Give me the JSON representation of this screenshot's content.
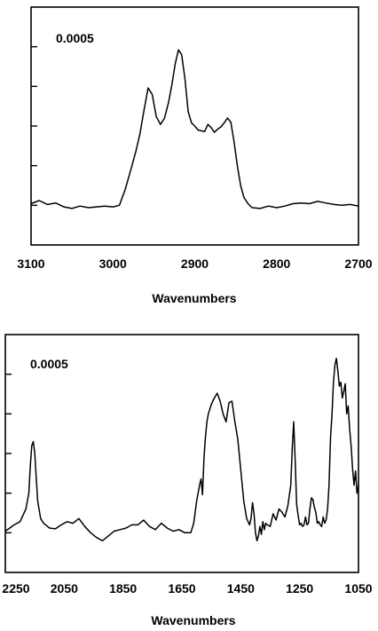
{
  "chart_data": [
    {
      "type": "line",
      "title": "",
      "xlabel": "Wavenumbers",
      "ylabel": "",
      "annotation": "0.0005",
      "xlim": [
        3100,
        2700
      ],
      "x_reversed": true,
      "ylim": [
        -0.0005,
        0.0025
      ],
      "x_ticks": [
        "3100",
        "3000",
        "2900",
        "2800",
        "2700"
      ],
      "y_tick_values": [
        0,
        0.0005,
        0.001,
        0.0015,
        0.002
      ],
      "grid": false,
      "series": [
        {
          "x": [
            3100,
            3090,
            3080,
            3070,
            3060,
            3050,
            3040,
            3030,
            3020,
            3010,
            3000,
            2992,
            2985,
            2978,
            2972,
            2967,
            2962,
            2957,
            2952,
            2947,
            2942,
            2937,
            2932,
            2928,
            2924,
            2920,
            2916,
            2912,
            2908,
            2904,
            2900,
            2896,
            2892,
            2888,
            2884,
            2880,
            2876,
            2872,
            2868,
            2864,
            2860,
            2856,
            2852,
            2848,
            2844,
            2840,
            2835,
            2830,
            2820,
            2810,
            2800,
            2790,
            2780,
            2770,
            2760,
            2750,
            2740,
            2730,
            2720,
            2710,
            2700
          ],
          "values": [
            2e-05,
            6e-05,
            1e-05,
            3e-05,
            -2e-05,
            -4e-05,
            -1e-05,
            -3e-05,
            -2e-05,
            -1e-05,
            -2e-05,
            0.0,
            0.0002,
            0.00045,
            0.00068,
            0.0009,
            0.0012,
            0.00148,
            0.0014,
            0.00112,
            0.00102,
            0.0011,
            0.0013,
            0.00152,
            0.00178,
            0.00196,
            0.0019,
            0.0016,
            0.00118,
            0.00104,
            0.001,
            0.00095,
            0.00094,
            0.00093,
            0.00102,
            0.00098,
            0.00092,
            0.00096,
            0.00099,
            0.00104,
            0.0011,
            0.00105,
            0.0008,
            0.0005,
            0.00025,
            0.0001,
            2e-05,
            -3e-05,
            -4e-05,
            -1e-05,
            -3e-05,
            -1e-05,
            2e-05,
            3e-05,
            2e-05,
            5e-05,
            3e-05,
            1e-05,
            0.0,
            1e-05,
            -1e-05
          ]
        }
      ]
    },
    {
      "type": "line",
      "title": "",
      "xlabel": "Wavenumbers",
      "ylabel": "",
      "annotation": "0.0005",
      "xlim": [
        2250,
        1050
      ],
      "x_reversed": true,
      "ylim": [
        -0.0005,
        0.0025
      ],
      "x_ticks": [
        "2250",
        "2050",
        "1850",
        "1650",
        "1450",
        "1250",
        "1050"
      ],
      "y_tick_values": [
        0,
        0.0005,
        0.001,
        0.0015,
        0.002
      ],
      "grid": false,
      "series": [
        {
          "x": [
            2250,
            2220,
            2200,
            2180,
            2170,
            2165,
            2160,
            2155,
            2150,
            2145,
            2140,
            2130,
            2120,
            2100,
            2080,
            2060,
            2040,
            2020,
            2000,
            1980,
            1960,
            1940,
            1920,
            1900,
            1880,
            1860,
            1840,
            1820,
            1800,
            1780,
            1760,
            1740,
            1720,
            1700,
            1680,
            1660,
            1640,
            1620,
            1610,
            1600,
            1590,
            1585,
            1580,
            1575,
            1570,
            1565,
            1560,
            1550,
            1540,
            1530,
            1520,
            1510,
            1500,
            1490,
            1480,
            1470,
            1460,
            1450,
            1440,
            1430,
            1420,
            1415,
            1410,
            1405,
            1400,
            1395,
            1390,
            1385,
            1380,
            1375,
            1370,
            1365,
            1360,
            1350,
            1340,
            1330,
            1320,
            1310,
            1300,
            1290,
            1280,
            1275,
            1270,
            1265,
            1260,
            1255,
            1250,
            1245,
            1240,
            1235,
            1230,
            1225,
            1220,
            1215,
            1210,
            1205,
            1200,
            1195,
            1190,
            1185,
            1180,
            1175,
            1170,
            1165,
            1160,
            1155,
            1150,
            1145,
            1140,
            1135,
            1130,
            1125,
            1120,
            1115,
            1110,
            1105,
            1100,
            1095,
            1090,
            1085,
            1080,
            1075,
            1070,
            1065,
            1060,
            1055,
            1050
          ],
          "values": [
            2e-05,
            0.0001,
            0.00014,
            0.0003,
            0.0005,
            0.00085,
            0.0011,
            0.00115,
            0.001,
            0.0007,
            0.0004,
            0.00018,
            0.00012,
            6e-05,
            5e-05,
            0.0001,
            0.00014,
            0.00012,
            0.00018,
            8e-05,
            0.0,
            -6e-05,
            -0.0001,
            -4e-05,
            2e-05,
            4e-05,
            6e-05,
            0.0001,
            0.0001,
            0.00016,
            8e-05,
            4e-05,
            0.00012,
            6e-05,
            2e-05,
            4e-05,
            0.0,
            0.0,
            0.00012,
            0.0004,
            0.0006,
            0.00068,
            0.00048,
            0.00095,
            0.0012,
            0.0014,
            0.0015,
            0.00162,
            0.0017,
            0.00176,
            0.00166,
            0.0015,
            0.0014,
            0.00164,
            0.00166,
            0.0014,
            0.00118,
            0.0008,
            0.0004,
            0.00018,
            0.0001,
            0.00018,
            0.00038,
            0.00024,
            0.0,
            -0.0001,
            -4e-05,
            8e-05,
            -2e-05,
            0.00014,
            4e-05,
            0.00012,
            0.0001,
            8e-05,
            0.00024,
            0.00016,
            0.0003,
            0.00026,
            0.0002,
            0.00034,
            0.0006,
            0.00108,
            0.0014,
            0.0009,
            0.00036,
            0.00022,
            0.0001,
            0.00012,
            8e-05,
            0.0001,
            0.0002,
            0.0001,
            0.00012,
            0.0003,
            0.00044,
            0.00042,
            0.00032,
            0.00026,
            0.00012,
            0.00014,
            0.0001,
            8e-05,
            0.0002,
            0.00012,
            0.00016,
            0.0003,
            0.0006,
            0.0012,
            0.0015,
            0.0019,
            0.00212,
            0.0022,
            0.00204,
            0.00185,
            0.0019,
            0.0017,
            0.00178,
            0.00188,
            0.0015,
            0.0016,
            0.0013,
            0.0011,
            0.0008,
            0.0006,
            0.00078,
            0.0005,
            0.0006
          ]
        }
      ]
    }
  ]
}
